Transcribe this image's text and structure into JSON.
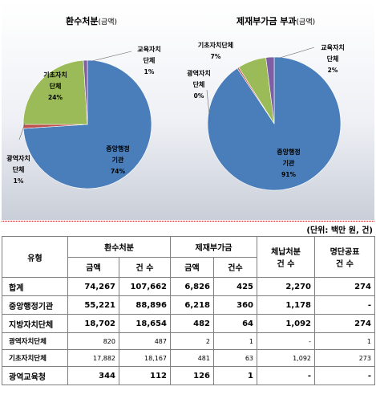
{
  "unit_note": "(단위: 백만 원, 건)",
  "chart_data": [
    {
      "type": "pie",
      "title": "환수처분",
      "title_suffix": "(금액)",
      "slices": [
        {
          "label": "중앙행정 기관",
          "value": 74,
          "color": "#4a7ebb"
        },
        {
          "label": "교육자치 단체",
          "value": 1,
          "color": "#7f5fa3"
        },
        {
          "label": "기초자치 단체",
          "value": 24,
          "color": "#9bbb59"
        },
        {
          "label": "광역자치 단체",
          "value": 1,
          "color": "#c0504d"
        }
      ],
      "label_texts": [
        {
          "name": "중앙행정",
          "name2": "기관",
          "pct": "74%"
        },
        {
          "name": "교육자치",
          "name2": "단체",
          "pct": "1%"
        },
        {
          "name": "기초자치",
          "name2": "단체",
          "pct": "24%"
        },
        {
          "name": "광역자치",
          "name2": "단체",
          "pct": "1%"
        }
      ]
    },
    {
      "type": "pie",
      "title": "제재부가금 부과",
      "title_suffix": "(금액)",
      "slices": [
        {
          "label": "중앙행정 기관",
          "value": 91,
          "color": "#4a7ebb"
        },
        {
          "label": "교육자치 단체",
          "value": 2,
          "color": "#7f5fa3"
        },
        {
          "label": "기초자치단체",
          "value": 7,
          "color": "#9bbb59"
        },
        {
          "label": "광역자치 단체",
          "value": 0,
          "color": "#c0504d"
        }
      ],
      "label_texts": [
        {
          "name": "중앙행정",
          "name2": "기관",
          "pct": "91%"
        },
        {
          "name": "교육자치",
          "name2": "단체",
          "pct": "2%"
        },
        {
          "name": "기초자치단체",
          "name2": "",
          "pct": "7%"
        },
        {
          "name": "광역자치",
          "name2": "단체",
          "pct": "0%"
        }
      ]
    }
  ],
  "table": {
    "headers": {
      "type": "유형",
      "refund": "환수처분",
      "sanction": "제재부가금",
      "arrears": "체납처분",
      "arrears_sub": "건 수",
      "public": "명단공표",
      "public_sub": "건 수",
      "amount": "금액",
      "count": "건 수",
      "amount2": "금액",
      "count2": "건수"
    },
    "rows": [
      {
        "label": "합계",
        "cells": [
          "74,267",
          "107,662",
          "6,826",
          "425",
          "2,270",
          "274"
        ],
        "sub": false
      },
      {
        "label": "중앙행정기관",
        "cells": [
          "55,221",
          "88,896",
          "6,218",
          "360",
          "1,178",
          "-"
        ],
        "sub": false
      },
      {
        "label": "지방자치단체",
        "cells": [
          "18,702",
          "18,654",
          "482",
          "64",
          "1,092",
          "274"
        ],
        "sub": false
      },
      {
        "label": "광역자치단체",
        "cells": [
          "820",
          "487",
          "2",
          "1",
          "-",
          "1"
        ],
        "sub": true
      },
      {
        "label": "기초자치단체",
        "cells": [
          "17,882",
          "18,167",
          "481",
          "63",
          "1,092",
          "273"
        ],
        "sub": true
      },
      {
        "label": "광역교육청",
        "cells": [
          "344",
          "112",
          "126",
          "1",
          "-",
          "-"
        ],
        "sub": false
      }
    ]
  }
}
